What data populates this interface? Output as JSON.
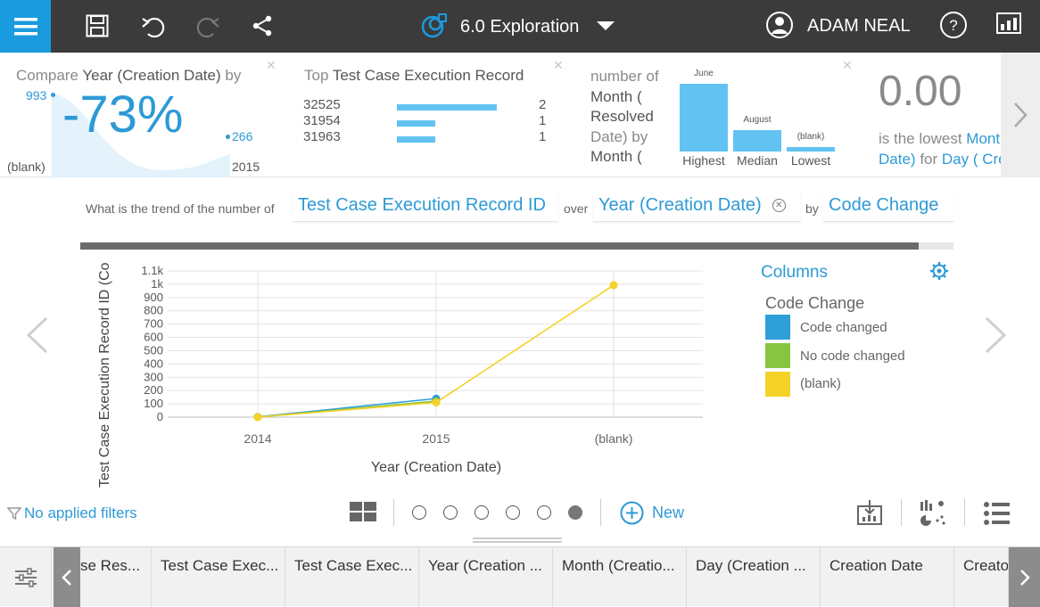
{
  "colors": {
    "accent": "#1a9be0",
    "link": "#2d9ad6",
    "topbar": "#3b3b3b",
    "bar": "#62c3f2",
    "code_changed": "#2e9fd9",
    "no_code_changed": "#87c540",
    "blank": "#f5d227"
  },
  "header": {
    "menu_icon": "hamburger-icon",
    "title": "6.0 Exploration",
    "user": "ADAM NEAL",
    "toolbar_icons": [
      "save-icon",
      "undo-icon",
      "redo-icon",
      "share-icon",
      "help-icon",
      "dashboard-icon"
    ]
  },
  "cards": {
    "compare": {
      "title_prefix": "Compare",
      "title_field": "Year (Creation Date)",
      "title_suffix": "by",
      "value": "-73%",
      "start_value": "993",
      "end_value": "266",
      "start_label": "(blank)",
      "end_label": "2015"
    },
    "top": {
      "title_prefix": "Top",
      "title_field": "Test Case Execution Record",
      "rows": [
        {
          "label": "32525",
          "value": "2",
          "fraction": 1.0
        },
        {
          "label": "31954",
          "value": "1",
          "fraction": 0.38
        },
        {
          "label": "31963",
          "value": "1",
          "fraction": 0.38
        }
      ]
    },
    "distribution": {
      "text_lines": [
        "number of",
        "Month (",
        "Resolved",
        "Date) by",
        "Month ("
      ],
      "bar_labels": [
        "June",
        "August",
        "(blank)"
      ],
      "bar_fractions": [
        1.0,
        0.32,
        0.06
      ],
      "axis_labels": [
        "Highest",
        "Median",
        "Lowest"
      ]
    },
    "lowest": {
      "value": "0.00",
      "line1_prefix": "is the lowest",
      "line1_field": "Month (",
      "line2_field": "Date)",
      "line2_mid": "for",
      "line2_field2": "Day ( Crea"
    },
    "next_icon": "chevron-right-icon"
  },
  "question": {
    "prefix": "What is the trend of the number of",
    "measure": "Test Case Execution Record ID",
    "over": "over",
    "dimension": "Year (Creation Date)",
    "by": "by",
    "split": "Code Change"
  },
  "chart_data": {
    "type": "line",
    "categories": [
      "2014",
      "2015",
      "(blank)"
    ],
    "xlabel": "Year (Creation Date)",
    "ylabel": "Test Case Execution Record ID (Co",
    "ylim": [
      0,
      1100
    ],
    "yticks": [
      "0",
      "100",
      "200",
      "300",
      "400",
      "500",
      "600",
      "700",
      "800",
      "900",
      "1k",
      "1.1k"
    ],
    "ytick_values": [
      0,
      100,
      200,
      300,
      400,
      500,
      600,
      700,
      800,
      900,
      1000,
      1100
    ],
    "grid": true,
    "legend_position": "right",
    "series": [
      {
        "name": "Code changed",
        "color": "#2e9fd9",
        "values": [
          2,
          140,
          null
        ]
      },
      {
        "name": "No code changed",
        "color": "#87c540",
        "values": [
          1,
          120,
          null
        ]
      },
      {
        "name": "(blank)",
        "color": "#f5d227",
        "values": [
          0,
          110,
          993
        ]
      }
    ]
  },
  "legend": {
    "title": "Columns",
    "subtitle": "Code Change",
    "items": [
      "Code changed",
      "No code changed",
      "(blank)"
    ]
  },
  "bottom_bar": {
    "filters": "No applied filters",
    "new_label": "New",
    "page_count": 6,
    "active_page": 6
  },
  "footer_tabs": [
    "se Res...",
    "Test Case Exec...",
    "Test Case Exec...",
    "Year (Creation ...",
    "Month (Creatio...",
    "Day (Creation ...",
    "Creation Date",
    "Creato"
  ]
}
